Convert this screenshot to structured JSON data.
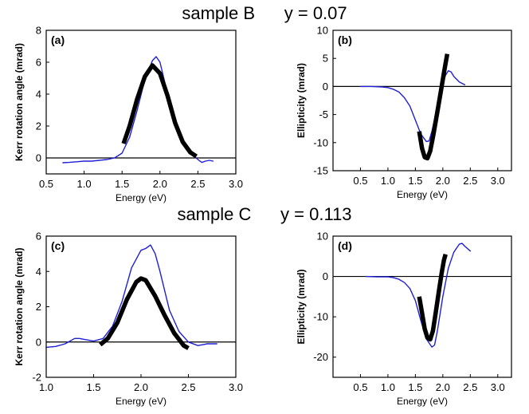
{
  "figure": {
    "row_titles": [
      {
        "sample": "sample B",
        "y": "y = 0.07"
      },
      {
        "sample": "sample C",
        "y": "y = 0.113"
      }
    ]
  },
  "colors": {
    "model": "#1f1fd6",
    "measured": "#000000",
    "zero_line": "#000000"
  },
  "chart_data": [
    {
      "id": "a",
      "type": "line",
      "label": "(a)",
      "xlabel": "Energy (eV)",
      "ylabel": "Kerr rotation angle (mrad)",
      "xlim": [
        0.5,
        3.0
      ],
      "ylim": [
        -1,
        8
      ],
      "xticks": [
        "0.5",
        "1.0",
        "1.5",
        "2.0",
        "2.5",
        "3.0"
      ],
      "yticks": [
        "0",
        "2",
        "4",
        "6",
        "8"
      ],
      "zero_line": true,
      "series": [
        {
          "style": "thin-blue",
          "x": [
            0.72,
            0.8,
            0.9,
            1.0,
            1.1,
            1.2,
            1.3,
            1.4,
            1.5,
            1.6,
            1.7,
            1.8,
            1.9,
            1.95,
            2.0,
            2.05,
            2.1,
            2.2,
            2.3,
            2.4,
            2.5,
            2.55,
            2.6,
            2.65,
            2.7
          ],
          "y": [
            -0.3,
            -0.28,
            -0.24,
            -0.2,
            -0.2,
            -0.15,
            -0.1,
            0.0,
            0.3,
            1.3,
            3.0,
            4.9,
            6.1,
            6.35,
            6.0,
            5.0,
            4.0,
            2.3,
            1.1,
            0.35,
            -0.1,
            -0.28,
            -0.2,
            -0.15,
            -0.2
          ]
        },
        {
          "style": "thick-black",
          "x": [
            1.52,
            1.6,
            1.7,
            1.8,
            1.9,
            2.0,
            2.1,
            2.2,
            2.3,
            2.4,
            2.48
          ],
          "y": [
            0.9,
            2.0,
            3.7,
            5.1,
            5.8,
            5.3,
            3.9,
            2.2,
            1.0,
            0.35,
            0.1
          ]
        }
      ]
    },
    {
      "id": "b",
      "type": "line",
      "label": "(b)",
      "xlabel": "Energy (eV)",
      "ylabel": "Ellipticity (mrad)",
      "xlim": [
        0.0,
        3.25
      ],
      "ylim": [
        -15,
        10
      ],
      "xticks": [
        "0.5",
        "1.0",
        "1.5",
        "2.0",
        "2.5",
        "3.0"
      ],
      "yticks": [
        "-15",
        "-10",
        "-5",
        "0",
        "5",
        "10"
      ],
      "zero_line": true,
      "series": [
        {
          "style": "thin-blue",
          "x": [
            0.5,
            0.7,
            0.9,
            1.0,
            1.1,
            1.2,
            1.3,
            1.4,
            1.5,
            1.6,
            1.7,
            1.75,
            1.8,
            1.9,
            2.0,
            2.05,
            2.1,
            2.15,
            2.2,
            2.3,
            2.4
          ],
          "y": [
            0.0,
            0.0,
            -0.1,
            -0.2,
            -0.5,
            -1.0,
            -2.0,
            -3.5,
            -6.0,
            -8.5,
            -9.8,
            -9.7,
            -8.0,
            -3.5,
            0.5,
            2.0,
            2.8,
            2.6,
            1.8,
            0.8,
            0.3
          ]
        },
        {
          "style": "thick-black",
          "x": [
            1.57,
            1.62,
            1.67,
            1.72,
            1.77,
            1.83,
            1.9,
            1.97,
            2.03,
            2.08
          ],
          "y": [
            -8.0,
            -11.0,
            -12.6,
            -12.8,
            -11.5,
            -8.5,
            -4.5,
            -0.5,
            3.0,
            5.8
          ]
        }
      ]
    },
    {
      "id": "c",
      "type": "line",
      "label": "(c)",
      "xlabel": "Energy (eV)",
      "ylabel": "Kerr rotation angle (mrad)",
      "xlim": [
        1.0,
        3.0
      ],
      "ylim": [
        -2,
        6
      ],
      "xticks": [
        "1.0",
        "1.5",
        "2.0",
        "2.5",
        "3.0"
      ],
      "yticks": [
        "-2",
        "0",
        "2",
        "4",
        "6"
      ],
      "zero_line": true,
      "series": [
        {
          "style": "thin-blue",
          "x": [
            1.0,
            1.1,
            1.2,
            1.3,
            1.35,
            1.4,
            1.5,
            1.6,
            1.7,
            1.8,
            1.9,
            2.0,
            2.05,
            2.1,
            2.15,
            2.2,
            2.3,
            2.4,
            2.5,
            2.6,
            2.7,
            2.8
          ],
          "y": [
            -0.3,
            -0.25,
            -0.1,
            0.2,
            0.2,
            0.15,
            0.05,
            0.2,
            0.9,
            2.3,
            4.2,
            5.2,
            5.3,
            5.5,
            5.0,
            4.0,
            1.8,
            0.6,
            0.0,
            -0.2,
            -0.1,
            -0.1
          ]
        },
        {
          "style": "thick-black",
          "x": [
            1.57,
            1.65,
            1.75,
            1.85,
            1.95,
            2.0,
            2.05,
            2.15,
            2.25,
            2.35,
            2.45,
            2.5
          ],
          "y": [
            -0.15,
            0.2,
            1.1,
            2.4,
            3.4,
            3.6,
            3.5,
            2.6,
            1.5,
            0.5,
            -0.2,
            -0.35
          ]
        }
      ]
    },
    {
      "id": "d",
      "type": "line",
      "label": "(d)",
      "xlabel": "Energy (eV)",
      "ylabel": "Ellipticity (mrad)",
      "xlim": [
        0.0,
        3.25
      ],
      "ylim": [
        -25,
        10
      ],
      "xticks": [
        "0.5",
        "1.0",
        "1.5",
        "2.0",
        "2.5",
        "3.0"
      ],
      "yticks": [
        "-20",
        "-10",
        "0",
        "10"
      ],
      "zero_line": true,
      "series": [
        {
          "style": "thin-blue",
          "x": [
            0.6,
            0.8,
            1.0,
            1.1,
            1.2,
            1.3,
            1.4,
            1.5,
            1.6,
            1.7,
            1.8,
            1.85,
            1.9,
            2.0,
            2.1,
            2.2,
            2.3,
            2.35,
            2.4,
            2.5
          ],
          "y": [
            0.0,
            -0.1,
            -0.1,
            -0.3,
            -0.7,
            -1.5,
            -3.0,
            -6.0,
            -11.0,
            -15.5,
            -17.5,
            -17.0,
            -13.5,
            -5.0,
            2.0,
            6.0,
            8.0,
            8.2,
            7.5,
            6.3
          ]
        },
        {
          "style": "thick-black",
          "x": [
            1.57,
            1.62,
            1.67,
            1.72,
            1.77,
            1.82,
            1.87,
            1.93,
            1.98,
            2.02,
            2.05
          ],
          "y": [
            -5.0,
            -9.0,
            -13.0,
            -15.2,
            -15.6,
            -13.5,
            -9.0,
            -3.5,
            1.0,
            4.0,
            5.5
          ]
        }
      ]
    }
  ]
}
